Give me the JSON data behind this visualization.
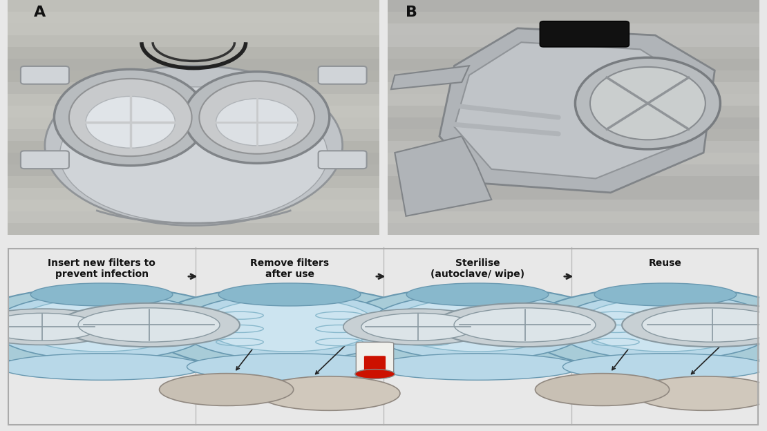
{
  "figure_width": 11.1,
  "figure_height": 6.24,
  "dpi": 100,
  "bg_color": "#e8e8e8",
  "photo_bg_A": "#c8c8c4",
  "photo_bg_B": "#c0c0bc",
  "bottom_bg": "#f0ede4",
  "bottom_border": "#aaaaaa",
  "divider_color": "#bbbbbb",
  "steps": [
    {
      "title": "Insert new filters to\nprevent infection",
      "arrow_after": true
    },
    {
      "title": "Remove filters\nafter use",
      "arrow_after": true
    },
    {
      "title": "Sterilise\n(autoclave/ wipe)",
      "arrow_after": true
    },
    {
      "title": "Reuse",
      "arrow_after": false
    }
  ],
  "mask_outer": "#a8ccd8",
  "mask_mid": "#b8d8e8",
  "mask_inner_fill": "#cce4f0",
  "mask_edge": "#6898b0",
  "mask_detail": "#88b8cc",
  "filter_outer": "#c8d0d4",
  "filter_inner": "#dce4e8",
  "filter_edge": "#8898a0",
  "cross_color": "#8898a0",
  "removed_filter": "#c8c0b4",
  "removed_edge": "#908880",
  "arrow_color": "#222222",
  "therm_body": "#f0f0ec",
  "therm_red": "#cc1100",
  "therm_edge": "#888888",
  "label_color": "#111111",
  "title_fontsize": 10,
  "label_fontsize": 16
}
